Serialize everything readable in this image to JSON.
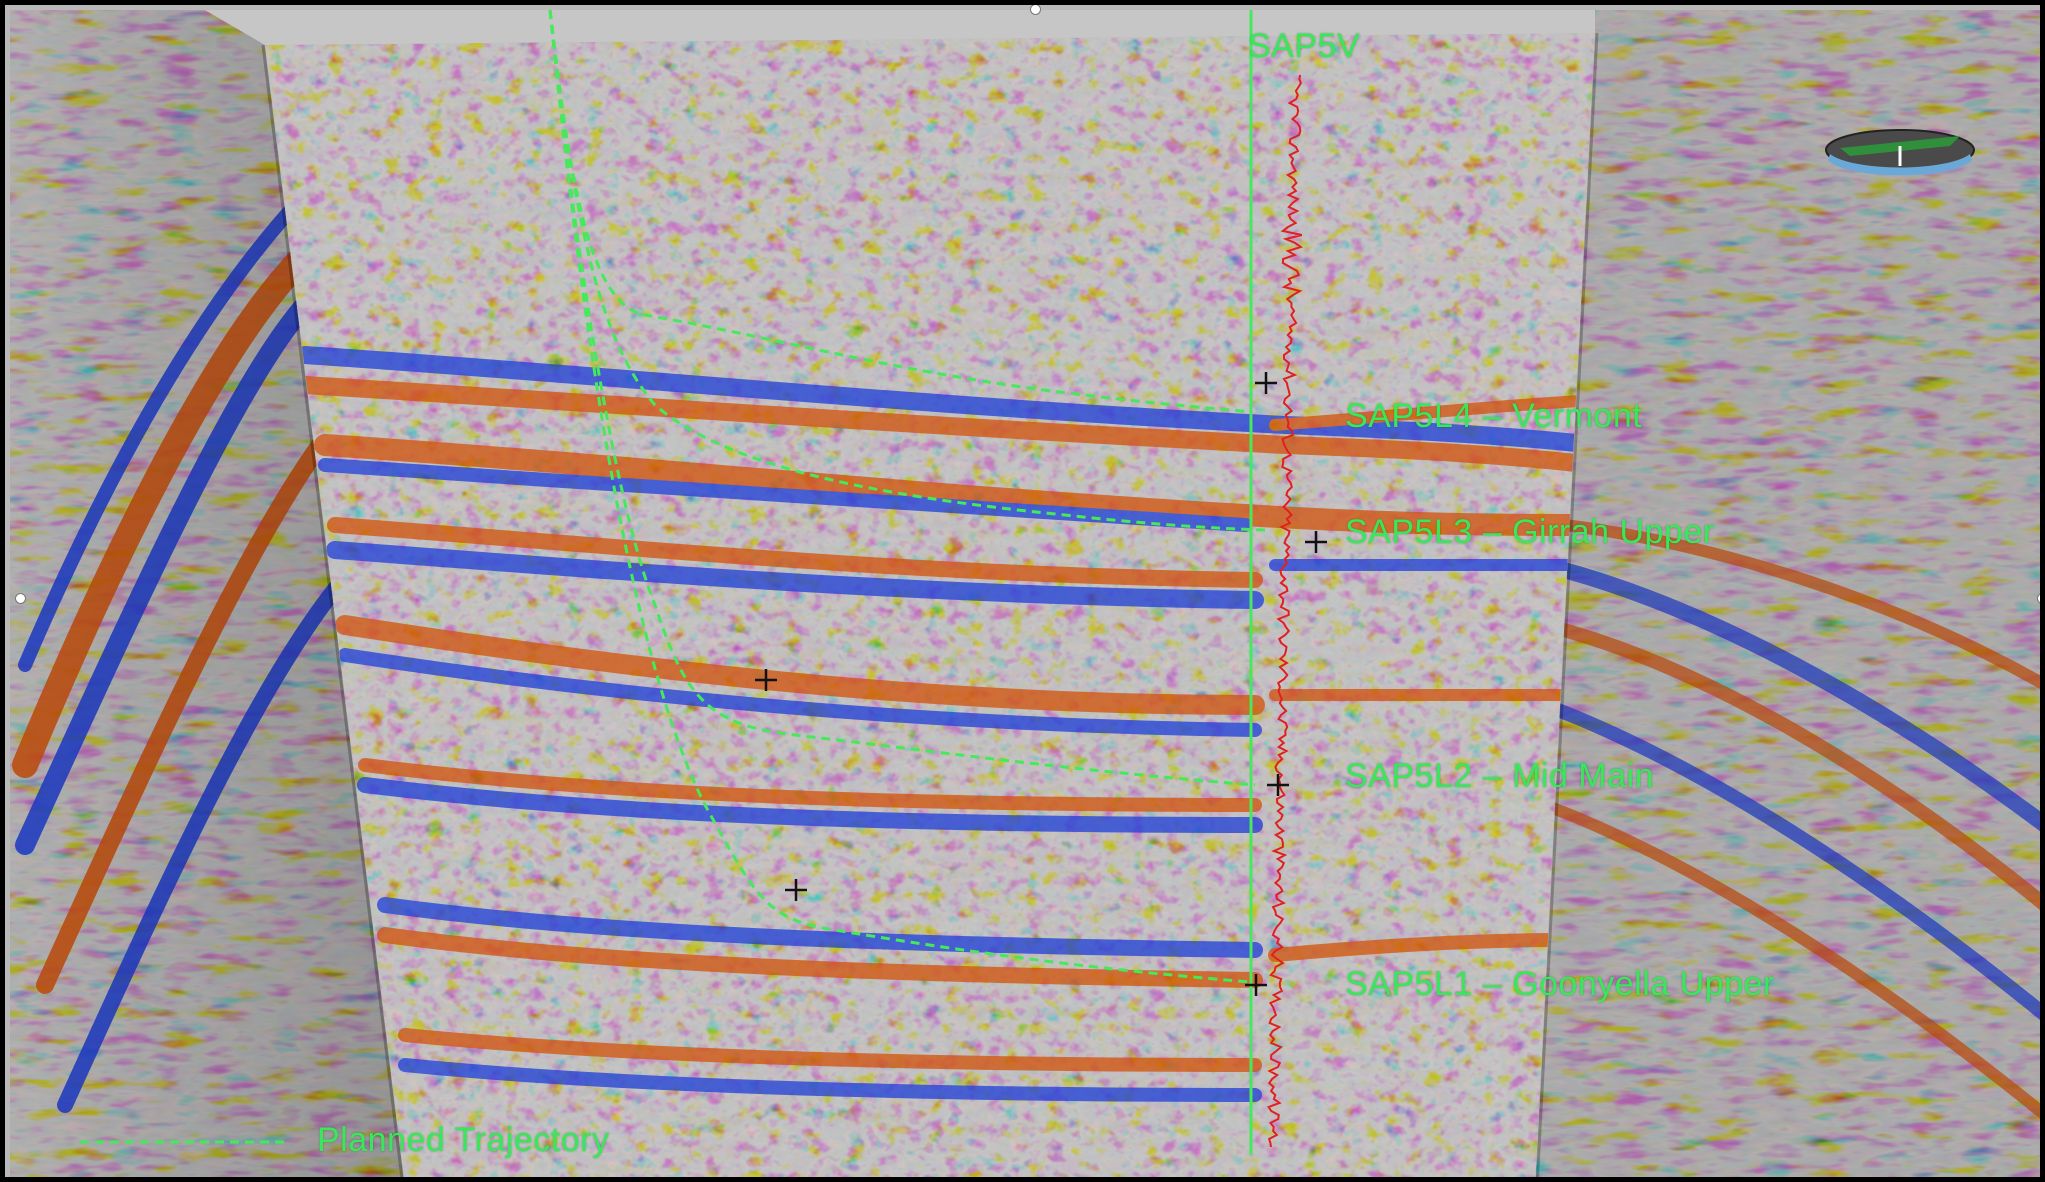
{
  "viewer": {
    "well_name": "SAP5V",
    "horizons": [
      {
        "label": "SAP5L4 – Vermont"
      },
      {
        "label": "SAP5L3 – Girrah Upper"
      },
      {
        "label": "SAP5L2 – Mid Main"
      },
      {
        "label": "SAP5L1 – Goonyella Upper"
      }
    ],
    "legend": {
      "label": "Planned Trajectory"
    }
  },
  "colors": {
    "trajectory": "#46e85c",
    "well_line": "#46e85c",
    "log_trace": "#e02020",
    "positive_amplitude": "#d2520a",
    "negative_amplitude": "#1e3fd8",
    "background_amplitude": "#bdbdbd",
    "frame": "#000000"
  },
  "icons": {
    "compass": "compass-icon",
    "marker": "cross-marker-icon"
  }
}
